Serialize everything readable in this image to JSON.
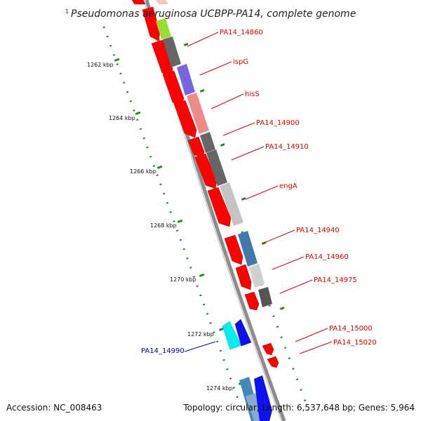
{
  "title": {
    "superscript": "1",
    "text": "Pseudomonas aeruginosa UCBPP-PA14, complete genome"
  },
  "footer": {
    "accession": "Accession: NC_008463",
    "topology": "Topology: circular; Length: 6,537,648 bp; Genes: 5,964"
  },
  "colors": {
    "backbone": "#8c8c8c",
    "reverse_gene": "#ff0000",
    "tick": "#228b22",
    "label_red": "#e00000",
    "label_blue": "#0000cc"
  },
  "ticks": [
    {
      "label": "1262 kbp"
    },
    {
      "label": "1264 kbp"
    },
    {
      "label": "1266 kbp"
    },
    {
      "label": "1268 kbp"
    },
    {
      "label": "1270 kbp"
    },
    {
      "label": "1272 kbp"
    },
    {
      "label": "1274 kbp"
    }
  ],
  "gene_labels": [
    {
      "text": "PA14_14860",
      "color": "#e00000"
    },
    {
      "text": "ispG",
      "color": "#e00000"
    },
    {
      "text": "hisS",
      "color": "#e00000"
    },
    {
      "text": "PA14_14900",
      "color": "#e00000"
    },
    {
      "text": "PA14_14910",
      "color": "#e00000"
    },
    {
      "text": "engA",
      "color": "#e00000"
    },
    {
      "text": "PA14_14940",
      "color": "#e00000"
    },
    {
      "text": "PA14_14960",
      "color": "#e00000"
    },
    {
      "text": "PA14_14975",
      "color": "#e00000"
    },
    {
      "text": "PA14_15000",
      "color": "#e00000"
    },
    {
      "text": "PA14_15020",
      "color": "#e00000"
    },
    {
      "text": "PA14_14990",
      "color": "#0000cc"
    }
  ]
}
